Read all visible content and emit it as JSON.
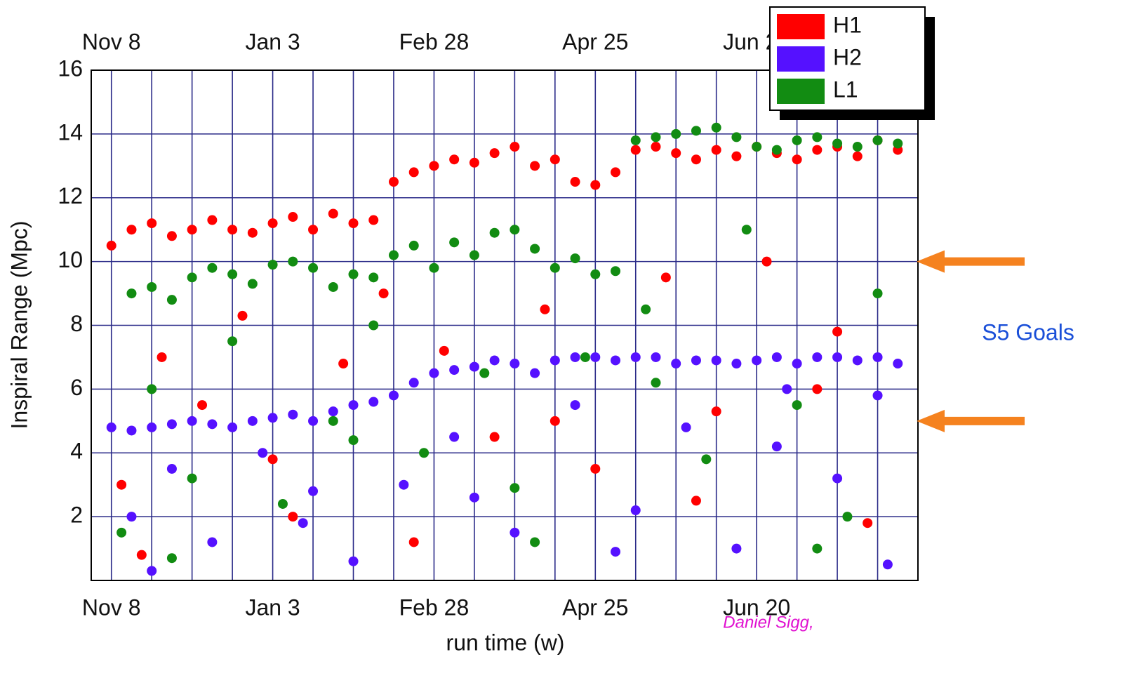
{
  "chart_data": {
    "type": "scatter",
    "xlabel": "run time (w)",
    "ylabel": "Inspiral Range (Mpc)",
    "annotation": "S5 Goals",
    "goal_lines": [
      10,
      5
    ],
    "credit": "Daniel Sigg,",
    "xlim": [
      -1,
      40
    ],
    "ylim": [
      0,
      16
    ],
    "xticks": [
      {
        "value": 0,
        "label": "Nov 8"
      },
      {
        "value": 8,
        "label": "Jan 3"
      },
      {
        "value": 16,
        "label": "Feb 28"
      },
      {
        "value": 24,
        "label": "Apr 25"
      },
      {
        "value": 32,
        "label": "Jun 20"
      }
    ],
    "x_minor_ticks": [
      2,
      4,
      6,
      10,
      12,
      14,
      18,
      20,
      22,
      26,
      28,
      30,
      34,
      36,
      38
    ],
    "yticks": [
      2,
      4,
      6,
      8,
      10,
      12,
      14,
      16
    ],
    "grid": true,
    "legend": "upper right",
    "series": [
      {
        "name": "H1",
        "color": "#ff0000",
        "x": [
          0,
          1,
          2,
          3,
          4,
          5,
          6,
          7,
          8,
          9,
          10,
          11,
          12,
          13,
          14,
          15,
          16,
          17,
          18,
          19,
          20,
          21,
          22,
          23,
          24,
          25,
          26,
          27,
          28,
          29,
          30,
          31,
          32,
          33,
          34,
          35,
          36,
          37,
          38,
          39,
          0.5,
          2.5,
          4.5,
          6.5,
          9,
          11.5,
          13.5,
          16.5,
          19,
          21.5,
          24,
          27.5,
          30,
          32.5,
          35,
          37.5,
          1.5,
          8,
          15,
          22,
          29,
          36
        ],
        "values": [
          10.5,
          11,
          11.2,
          10.8,
          11,
          11.3,
          11,
          10.9,
          11.2,
          11.4,
          11,
          11.5,
          11.2,
          11.3,
          12.5,
          12.8,
          13,
          13.2,
          13.1,
          13.4,
          13.6,
          13,
          13.2,
          12.5,
          12.4,
          12.8,
          13.5,
          13.6,
          13.4,
          13.2,
          13.5,
          13.3,
          13.6,
          13.4,
          13.2,
          13.5,
          13.6,
          13.3,
          13.8,
          13.5,
          3,
          7,
          5.5,
          8.3,
          2,
          6.8,
          9,
          7.2,
          4.5,
          8.5,
          3.5,
          9.5,
          5.3,
          10,
          6,
          1.8,
          0.8,
          3.8,
          1.2,
          5,
          2.5,
          7.8
        ]
      },
      {
        "name": "H2",
        "color": "#5511ff",
        "x": [
          0,
          1,
          2,
          3,
          4,
          5,
          6,
          7,
          8,
          9,
          10,
          11,
          12,
          13,
          14,
          15,
          16,
          17,
          18,
          19,
          20,
          21,
          22,
          23,
          24,
          25,
          26,
          27,
          28,
          29,
          30,
          31,
          32,
          33,
          34,
          35,
          36,
          37,
          38,
          39,
          1,
          3,
          5,
          7.5,
          10,
          12,
          14.5,
          17,
          20,
          23,
          26,
          28.5,
          31,
          33.5,
          36,
          38.5,
          2,
          9.5,
          18,
          25,
          33,
          38
        ],
        "values": [
          4.8,
          4.7,
          4.8,
          4.9,
          5,
          4.9,
          4.8,
          5,
          5.1,
          5.2,
          5,
          5.3,
          5.5,
          5.6,
          5.8,
          6.2,
          6.5,
          6.6,
          6.7,
          6.9,
          6.8,
          6.5,
          6.9,
          7,
          7,
          6.9,
          7,
          7,
          6.8,
          6.9,
          6.9,
          6.8,
          6.9,
          7,
          6.8,
          7,
          7,
          6.9,
          7,
          6.8,
          2,
          3.5,
          1.2,
          4,
          2.8,
          0.6,
          3,
          4.5,
          1.5,
          5.5,
          2.2,
          4.8,
          1,
          6,
          3.2,
          0.5,
          0.3,
          1.8,
          2.6,
          0.9,
          4.2,
          5.8
        ]
      },
      {
        "name": "L1",
        "color": "#128c12",
        "x": [
          1,
          2,
          3,
          4,
          5,
          6,
          7,
          8,
          9,
          10,
          11,
          12,
          13,
          14,
          15,
          16,
          17,
          18,
          19,
          20,
          21,
          22,
          23,
          24,
          25,
          26,
          27,
          28,
          29,
          30,
          31,
          32,
          33,
          34,
          35,
          36,
          37,
          38,
          39,
          0.5,
          2,
          4,
          6,
          8.5,
          11,
          13,
          15.5,
          18.5,
          21,
          23.5,
          26.5,
          29.5,
          31.5,
          34,
          36.5,
          38,
          3,
          12,
          20,
          27,
          35
        ],
        "values": [
          9,
          9.2,
          8.8,
          9.5,
          9.8,
          9.6,
          9.3,
          9.9,
          10,
          9.8,
          9.2,
          9.6,
          9.5,
          10.2,
          10.5,
          9.8,
          10.6,
          10.2,
          10.9,
          11,
          10.4,
          9.8,
          10.1,
          9.6,
          9.7,
          13.8,
          13.9,
          14,
          14.1,
          14.2,
          13.9,
          13.6,
          13.5,
          13.8,
          13.9,
          13.7,
          13.6,
          13.8,
          13.7,
          1.5,
          6,
          3.2,
          7.5,
          2.4,
          5,
          8,
          4,
          6.5,
          1.2,
          7,
          8.5,
          3.8,
          11,
          5.5,
          2,
          9,
          0.7,
          4.4,
          2.9,
          6.2,
          1
        ]
      }
    ]
  }
}
